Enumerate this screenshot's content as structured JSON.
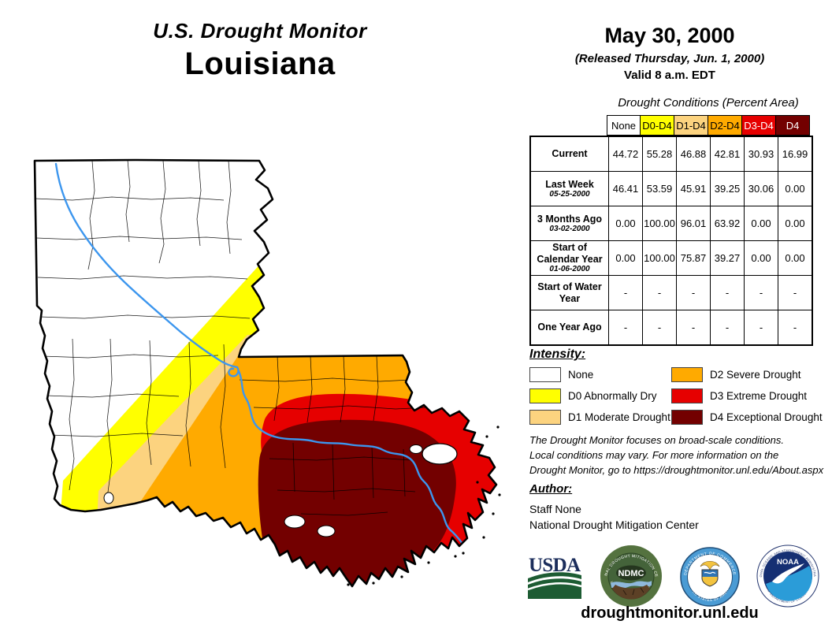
{
  "title": {
    "line1": "U.S. Drought Monitor",
    "line2": "Louisiana"
  },
  "date_block": {
    "date": "May 30, 2000",
    "released": "(Released Thursday, Jun. 1, 2000)",
    "valid": "Valid 8 a.m. EDT"
  },
  "table": {
    "caption": "Drought Conditions (Percent Area)",
    "columns": [
      {
        "label": "None",
        "bg": "#FFFFFF",
        "fg": "#000000"
      },
      {
        "label": "D0-D4",
        "bg": "#FFFF00",
        "fg": "#000000"
      },
      {
        "label": "D1-D4",
        "bg": "#FCD37F",
        "fg": "#000000"
      },
      {
        "label": "D2-D4",
        "bg": "#FFAA00",
        "fg": "#000000"
      },
      {
        "label": "D3-D4",
        "bg": "#E60000",
        "fg": "#FFFFFF"
      },
      {
        "label": "D4",
        "bg": "#730000",
        "fg": "#FFFFFF"
      }
    ],
    "rows": [
      {
        "label": "Current",
        "sublabel": "",
        "values": [
          "44.72",
          "55.28",
          "46.88",
          "42.81",
          "30.93",
          "16.99"
        ]
      },
      {
        "label": "Last Week",
        "sublabel": "05-25-2000",
        "values": [
          "46.41",
          "53.59",
          "45.91",
          "39.25",
          "30.06",
          "0.00"
        ]
      },
      {
        "label": "3 Months Ago",
        "sublabel": "03-02-2000",
        "values": [
          "0.00",
          "100.00",
          "96.01",
          "63.92",
          "0.00",
          "0.00"
        ]
      },
      {
        "label": "Start of Calendar Year",
        "sublabel": "01-06-2000",
        "values": [
          "0.00",
          "100.00",
          "75.87",
          "39.27",
          "0.00",
          "0.00"
        ]
      },
      {
        "label": "Start of Water Year",
        "sublabel": "",
        "values": [
          "-",
          "-",
          "-",
          "-",
          "-",
          "-"
        ]
      },
      {
        "label": "One Year Ago",
        "sublabel": "",
        "values": [
          "-",
          "-",
          "-",
          "-",
          "-",
          "-"
        ]
      }
    ]
  },
  "legend": {
    "heading": "Intensity:",
    "items": [
      {
        "key": "none",
        "label": "None",
        "color": "#FFFFFF"
      },
      {
        "key": "d0",
        "label": "D0 Abnormally Dry",
        "color": "#FFFF00"
      },
      {
        "key": "d1",
        "label": "D1 Moderate Drought",
        "color": "#FCD37F"
      },
      {
        "key": "d2",
        "label": "D2 Severe Drought",
        "color": "#FFAA00"
      },
      {
        "key": "d3",
        "label": "D3 Extreme Drought",
        "color": "#E60000"
      },
      {
        "key": "d4",
        "label": "D4 Exceptional Drought",
        "color": "#730000"
      }
    ]
  },
  "disclaimer": {
    "lines": [
      "The Drought Monitor focuses on broad-scale conditions.",
      "Local conditions may vary. For more information on the",
      "Drought Monitor, go to https://droughtmonitor.unl.edu/About.aspx"
    ]
  },
  "author": {
    "heading": "Author:",
    "name": "Staff None",
    "org": "National Drought Mitigation Center"
  },
  "logos": {
    "usda": {
      "label": "USDA"
    },
    "ndmc": {
      "label": "NDMC",
      "ring_top": "NATIONAL DROUGHT MITIGATION CENTER",
      "ring_bottom": "UNIVERSITY OF NEBRASKA"
    },
    "commerce": {
      "ring_top": "DEPARTMENT OF COMMERCE",
      "ring_bottom": "UNITED STATES OF AMERICA"
    },
    "noaa": {
      "label": "NOAA",
      "ring_top": "NATIONAL OCEANIC AND ATMOSPHERIC ADMINISTRATION",
      "ring_bottom": "U.S. DEPARTMENT OF COMMERCE"
    }
  },
  "footer": {
    "url": "droughtmonitor.unl.edu"
  },
  "map": {
    "state": "Louisiana",
    "river_color": "#3C96EE",
    "layers": [
      "none",
      "d0",
      "d1",
      "d2",
      "d3",
      "d4"
    ]
  }
}
